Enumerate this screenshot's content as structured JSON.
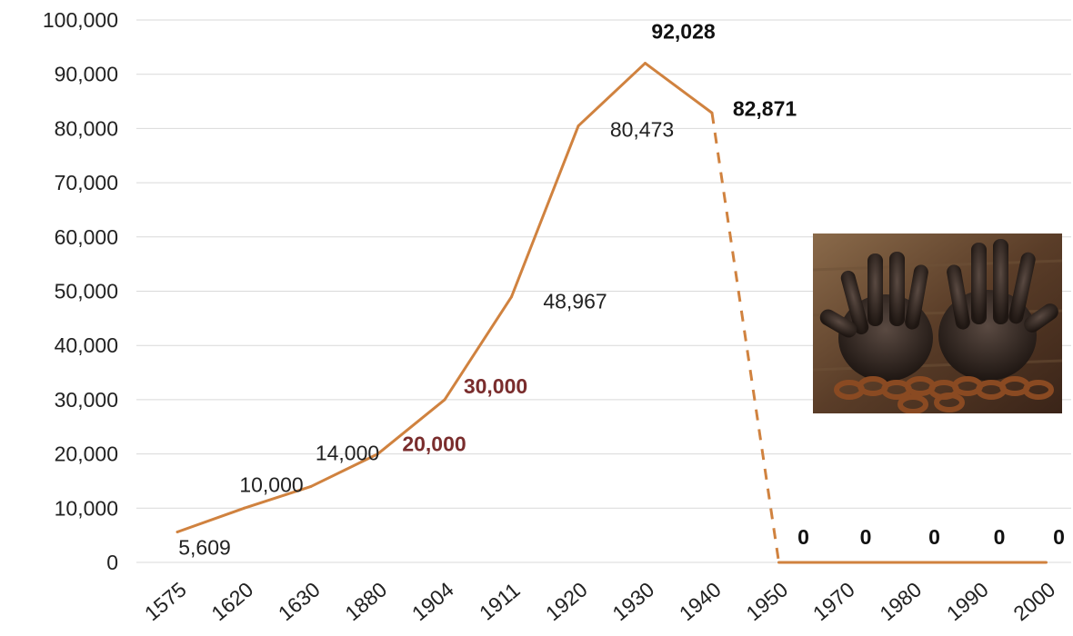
{
  "chart_data": {
    "type": "line",
    "categories": [
      "1575",
      "1620",
      "1630",
      "1880",
      "1904",
      "1911",
      "1920",
      "1930",
      "1940",
      "1950",
      "1970",
      "1980",
      "1990",
      "2000"
    ],
    "values": [
      5609,
      10000,
      14000,
      20000,
      30000,
      48967,
      80473,
      92028,
      82871,
      0,
      0,
      0,
      0,
      0
    ],
    "data_labels": [
      "5,609",
      "10,000",
      "14,000",
      "20,000",
      "30,000",
      "48,967",
      "80,473",
      "92,028",
      "82,871",
      "0",
      "0",
      "0",
      "0",
      "0"
    ],
    "label_bold": [
      false,
      false,
      false,
      true,
      true,
      false,
      false,
      true,
      true,
      true,
      true,
      true,
      true,
      true
    ],
    "label_colors": [
      "#222222",
      "#222222",
      "#222222",
      "#7a2d2d",
      "#7a2d2d",
      "#222222",
      "#222222",
      "#111111",
      "#111111",
      "#111111",
      "#111111",
      "#111111",
      "#111111",
      "#111111"
    ],
    "dashed_segment": {
      "from": "1940",
      "to": "1950"
    },
    "ylim": [
      0,
      100000
    ],
    "yticks": [
      0,
      10000,
      20000,
      30000,
      40000,
      50000,
      60000,
      70000,
      80000,
      90000,
      100000
    ],
    "ytick_labels": [
      "0",
      "10,000",
      "20,000",
      "30,000",
      "40,000",
      "50,000",
      "60,000",
      "70,000",
      "80,000",
      "90,000",
      "100,000"
    ],
    "line_color": "#d0823f",
    "grid": true,
    "title": "",
    "xlabel": "",
    "ylabel": ""
  },
  "image": {
    "icon": "chained-hands-photo"
  }
}
